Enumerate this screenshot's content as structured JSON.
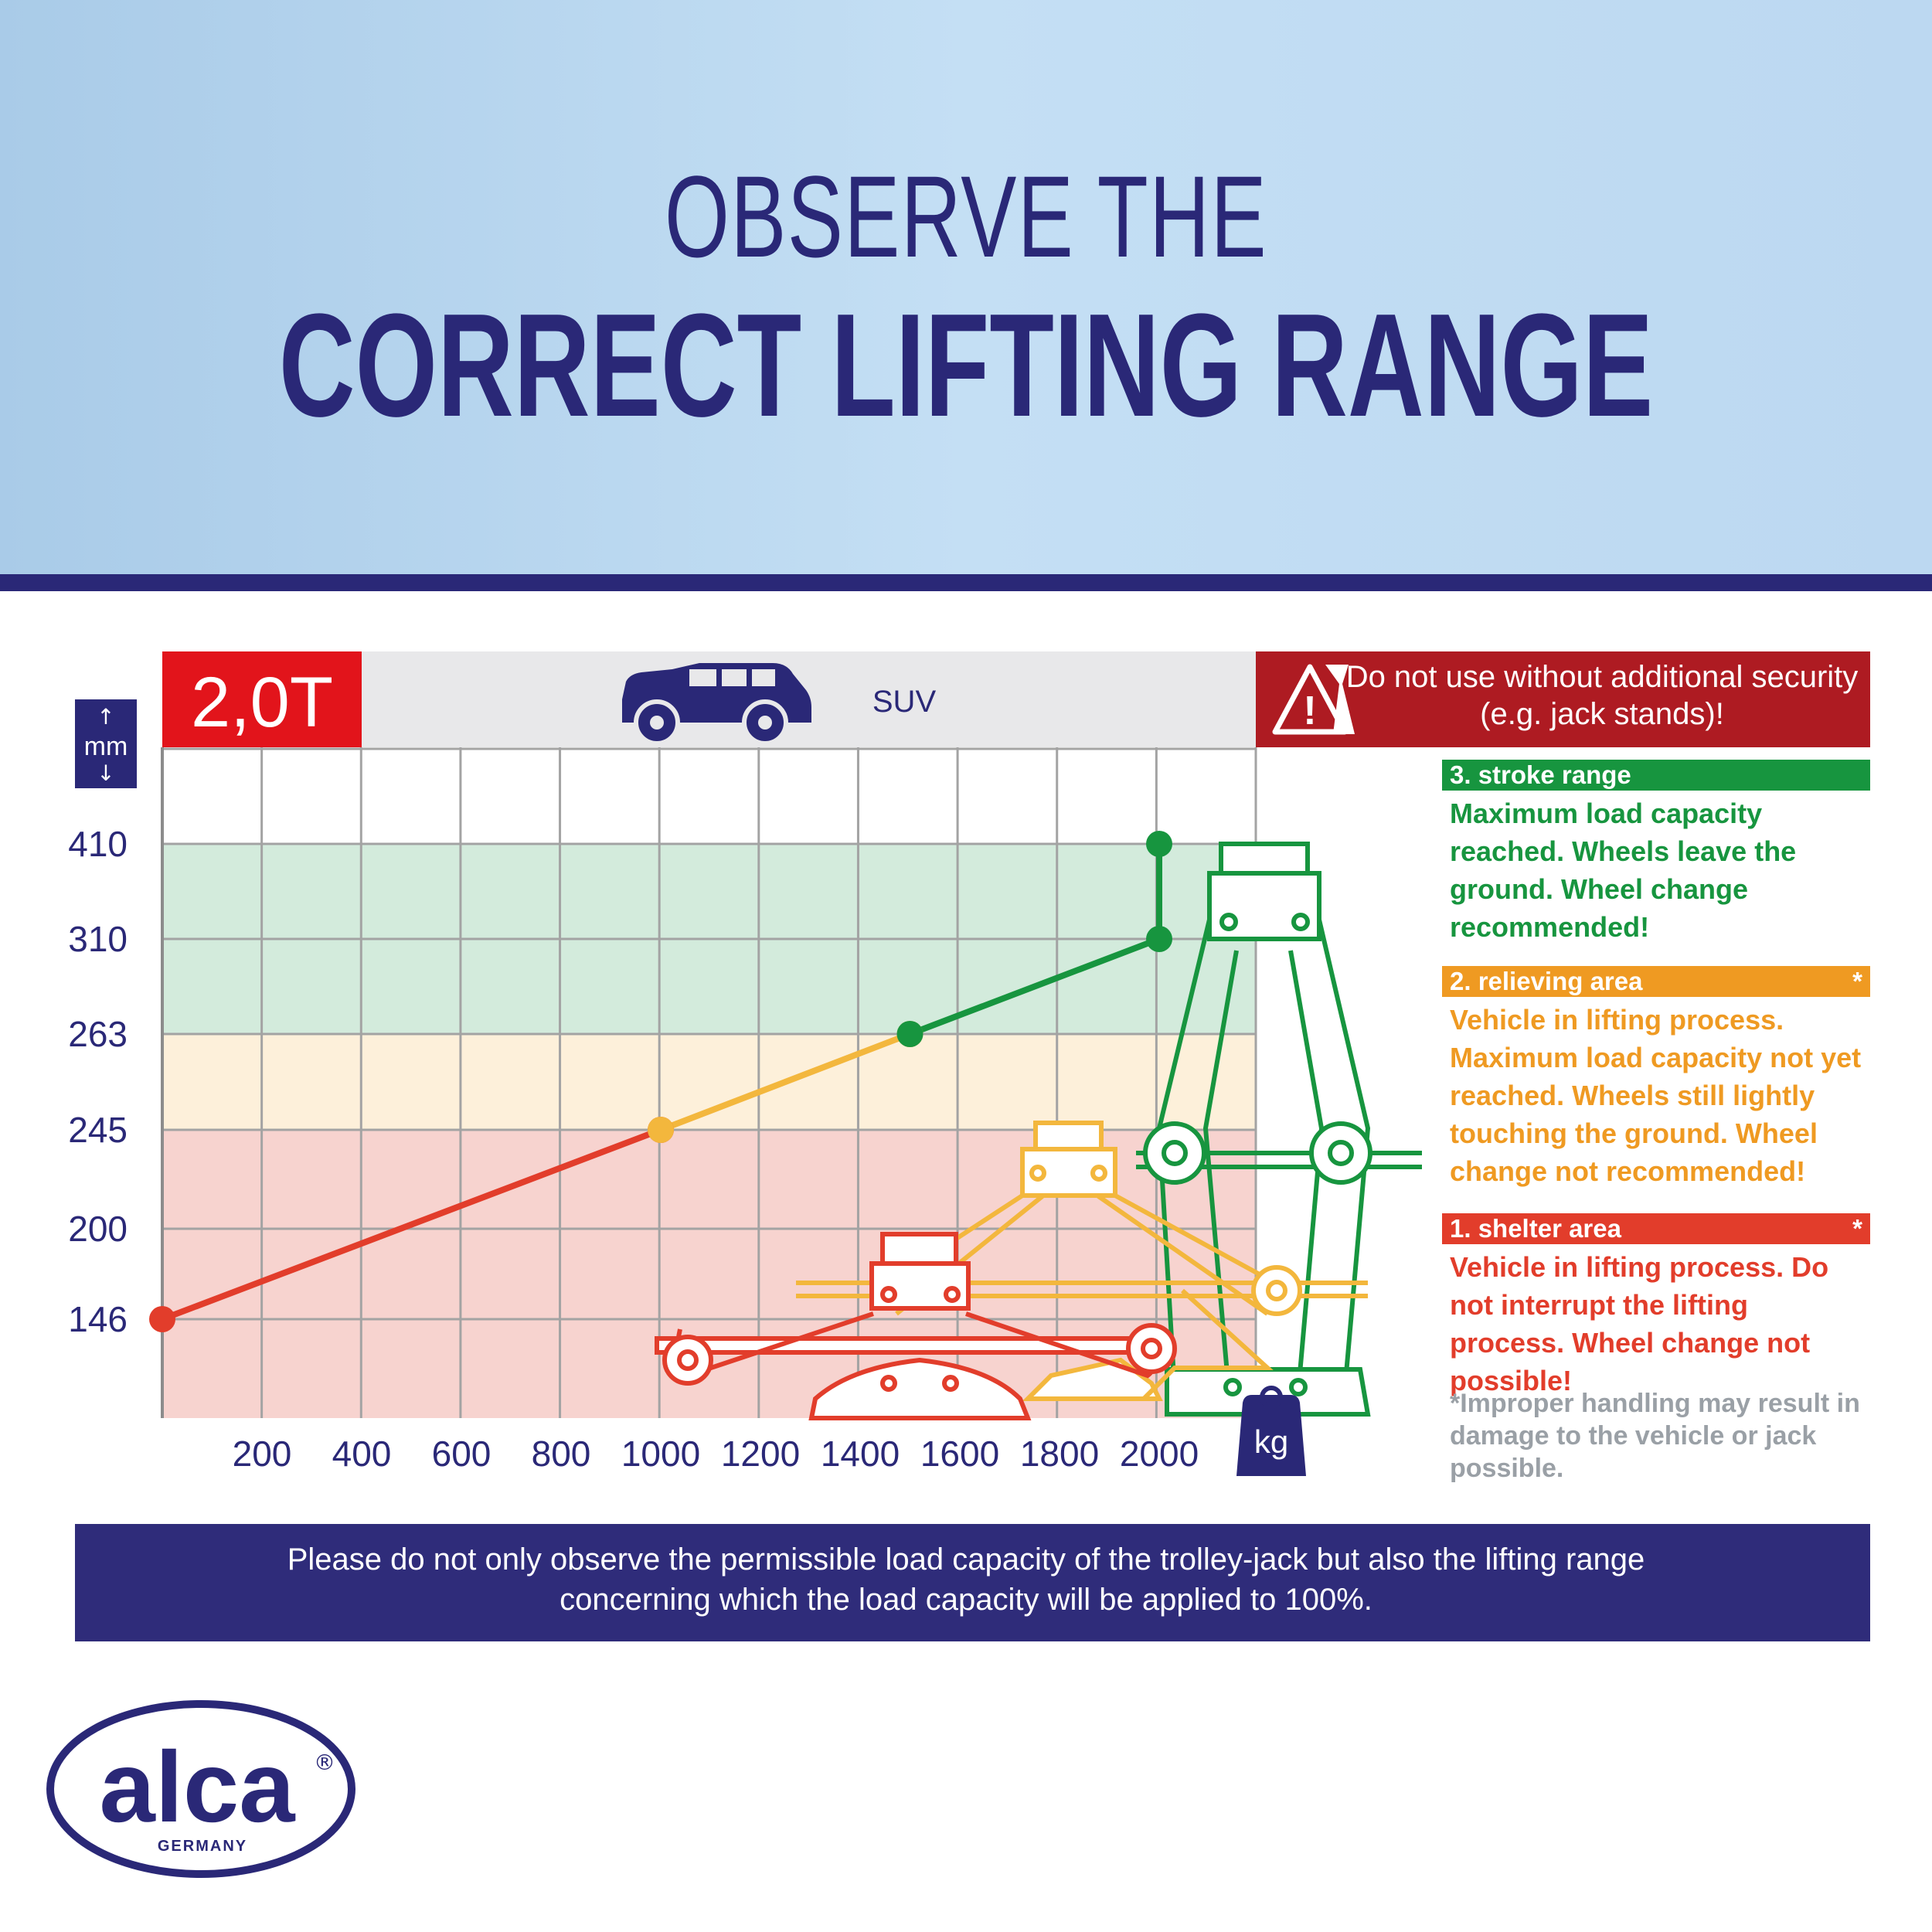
{
  "header": {
    "title_line1": "OBSERVE THE",
    "title_line2": "CORRECT LIFTING RANGE"
  },
  "badge": {
    "capacity": "2,0T"
  },
  "vehicle": {
    "label": "SUV",
    "icon": "suv-car-icon"
  },
  "unit_icons": {
    "y_unit": "mm",
    "x_unit": "kg"
  },
  "warning": {
    "icon": "jack-warning-icon",
    "text": "Do not use without additional security (e.g. jack stands)!"
  },
  "zones": [
    {
      "heading": "3. stroke range",
      "marker": "",
      "text": "Maximum load capacity reached. Wheels leave the ground. Wheel change recommended!",
      "color": "#17953f"
    },
    {
      "heading": "2. relieving area",
      "marker": "*",
      "text": "Vehicle in lifting process. Maximum load capacity not yet reached. Wheels still lightly touching the ground. Wheel change not recommended!",
      "color": "#ef9a22"
    },
    {
      "heading": "1. shelter area",
      "marker": "*",
      "text": "Vehicle in lifting process. Do not interrupt the lifting process. Wheel change not possible!",
      "color": "#e23d2b"
    }
  ],
  "footnote": "*Improper handling may result in damage to the vehicle or jack possible.",
  "bottom_notice": "Please do not only observe the permissible load capacity of the trolley-jack but also the lifting range concerning which the load capacity will be applied to 100%.",
  "brand": {
    "name": "alca",
    "sub": "GERMANY",
    "mark": "®"
  },
  "colors": {
    "navy": "#2a2877",
    "red": "#e23d2b",
    "dark_red": "#ae1b22",
    "badge_red": "#e2141b",
    "orange": "#f3b73d",
    "green": "#17953f",
    "band_green": "#d3ebdc",
    "band_yellow": "#fdf0da",
    "band_red": "#f7d3cf"
  },
  "chart_data": {
    "type": "line",
    "xlabel": "kg",
    "ylabel": "mm",
    "x_ticks": [
      200,
      400,
      600,
      800,
      1000,
      1200,
      1400,
      1600,
      1800,
      2000
    ],
    "y_ticks": [
      146,
      200,
      245,
      263,
      310,
      410
    ],
    "grid": true,
    "segments": [
      {
        "zone": "shelter area",
        "color": "#e23d2b",
        "points": [
          [
            0,
            146
          ],
          [
            1000,
            245
          ]
        ]
      },
      {
        "zone": "relieving area",
        "color": "#f3b73d",
        "points": [
          [
            1000,
            245
          ],
          [
            1500,
            263
          ]
        ]
      },
      {
        "zone": "stroke range",
        "color": "#17953f",
        "points": [
          [
            1500,
            263
          ],
          [
            2000,
            310
          ],
          [
            2000,
            410
          ]
        ]
      }
    ],
    "bands": [
      {
        "zone": "shelter area",
        "from": 0,
        "to": 245
      },
      {
        "zone": "relieving area",
        "from": 245,
        "to": 263
      },
      {
        "zone": "stroke range",
        "from": 263,
        "to": 410
      }
    ]
  }
}
